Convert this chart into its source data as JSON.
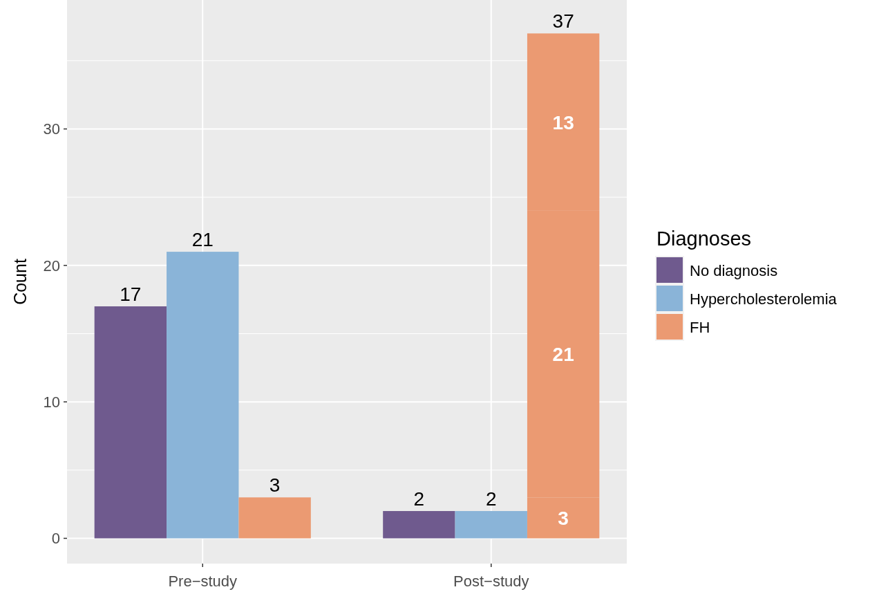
{
  "chart_data": {
    "type": "bar",
    "ylabel": "Count",
    "legend_title": "Diagnoses",
    "stacked": true,
    "categories": [
      null,
      "Pre−study",
      null,
      null,
      null,
      "Post−study",
      null
    ],
    "series": [
      {
        "name": "No diagnosis",
        "color": "#6f5a8e",
        "values": [
          17,
          null,
          null,
          null,
          2,
          null,
          null
        ],
        "value_labels": [
          "17",
          null,
          null,
          null,
          "2",
          null,
          null
        ]
      },
      {
        "name": "Hypercholesterolemia",
        "color": "#8ab4d8",
        "values": [
          null,
          21,
          null,
          null,
          null,
          2,
          null
        ],
        "value_labels": [
          null,
          "21",
          null,
          null,
          null,
          "2",
          null
        ]
      },
      {
        "name": "FH",
        "color": "#eb9a72",
        "values": [
          null,
          null,
          3,
          null,
          null,
          null,
          3
        ],
        "value_labels": [
          null,
          null,
          "3",
          null,
          null,
          null,
          "3"
        ]
      },
      {
        "color": "#eb9a72",
        "values": [
          null,
          null,
          null,
          null,
          null,
          null,
          21
        ],
        "value_labels": [
          null,
          null,
          null,
          null,
          null,
          null,
          "21"
        ]
      },
      {
        "color": "#eb9a72",
        "values": [
          null,
          null,
          null,
          null,
          null,
          null,
          13
        ],
        "value_labels": [
          null,
          null,
          null,
          null,
          null,
          null,
          "13"
        ]
      }
    ],
    "totals": [
      null,
      null,
      null,
      null,
      null,
      null,
      "37"
    ],
    "ylim": [
      -1.85,
      39.45
    ],
    "yticks": [
      0,
      10,
      20,
      30
    ],
    "grid": true,
    "legend": "right"
  }
}
